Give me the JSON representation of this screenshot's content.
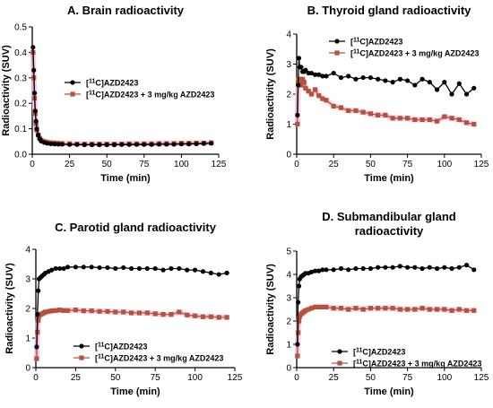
{
  "colors": {
    "control": "#000000",
    "blocked": "#b5523b",
    "blocked_band": "#f5c6e6"
  },
  "chart_data": [
    {
      "type": "line",
      "title_lines": [
        "A. Brain radioactivity"
      ],
      "xlabel": "Time (min)",
      "ylabel": "Radioactivity (SUV)",
      "xlim": [
        0,
        125
      ],
      "xticks": [
        0,
        25,
        50,
        75,
        100,
        125
      ],
      "ylim": [
        0,
        0.5
      ],
      "yticks": [
        0.0,
        0.1,
        0.2,
        0.3,
        0.4,
        0.5
      ],
      "ytick_labels": [
        "0.0",
        "0.1",
        "0.2",
        "0.3",
        "0.4",
        "0.5"
      ],
      "legend_position": "upper-middle",
      "series": [
        {
          "label_parts": [
            "[",
            "11",
            "C]AZD2423"
          ],
          "marker": "circle",
          "color": "#000000",
          "x": [
            0.5,
            1,
            1.5,
            2,
            2.5,
            3,
            4,
            5,
            6,
            8,
            10,
            12.5,
            15,
            17.5,
            20,
            25,
            30,
            35,
            40,
            45,
            50,
            55,
            60,
            65,
            70,
            75,
            80,
            85,
            90,
            95,
            100,
            105,
            110,
            115,
            120
          ],
          "y": [
            0.42,
            0.33,
            0.24,
            0.17,
            0.13,
            0.1,
            0.075,
            0.06,
            0.052,
            0.046,
            0.043,
            0.041,
            0.04,
            0.039,
            0.039,
            0.038,
            0.038,
            0.037,
            0.037,
            0.037,
            0.037,
            0.037,
            0.038,
            0.038,
            0.038,
            0.038,
            0.038,
            0.039,
            0.039,
            0.039,
            0.04,
            0.04,
            0.041,
            0.042,
            0.043
          ]
        },
        {
          "label_parts": [
            "[",
            "11",
            "C]AZD2423 + 3 mg/kg AZD2423"
          ],
          "marker": "square",
          "color": "#b5523b",
          "x": [
            0.5,
            1,
            1.5,
            2,
            2.5,
            3,
            4,
            5,
            6,
            8,
            10,
            12.5,
            15,
            17.5,
            20,
            25,
            30,
            35,
            40,
            45,
            50,
            55,
            60,
            65,
            70,
            75,
            80,
            85,
            90,
            95,
            100,
            105,
            110,
            115,
            120
          ],
          "y": [
            0.4,
            0.3,
            0.22,
            0.16,
            0.12,
            0.095,
            0.075,
            0.062,
            0.055,
            0.05,
            0.047,
            0.045,
            0.044,
            0.043,
            0.042,
            0.041,
            0.04,
            0.04,
            0.04,
            0.04,
            0.04,
            0.04,
            0.04,
            0.041,
            0.041,
            0.041,
            0.041,
            0.042,
            0.042,
            0.042,
            0.043,
            0.043,
            0.044,
            0.044,
            0.045
          ]
        }
      ]
    },
    {
      "type": "line",
      "title_lines": [
        "B. Thyroid gland radioactivity"
      ],
      "xlabel": "Time (min)",
      "ylabel": "Radioactivity (SUV)",
      "xlim": [
        0,
        125
      ],
      "xticks": [
        0,
        25,
        50,
        75,
        100,
        125
      ],
      "ylim": [
        0,
        4
      ],
      "yticks": [
        0,
        1,
        2,
        3,
        4
      ],
      "ytick_labels": [
        "0",
        "1",
        "2",
        "3",
        "4"
      ],
      "legend_position": "top-right",
      "series": [
        {
          "label_parts": [
            "[",
            "11",
            "C]AZD2423"
          ],
          "marker": "circle",
          "color": "#000000",
          "x": [
            0.5,
            1,
            1.5,
            2,
            3,
            4,
            5,
            6,
            8,
            10,
            12.5,
            15,
            17.5,
            20,
            25,
            30,
            35,
            40,
            45,
            50,
            55,
            60,
            65,
            70,
            75,
            80,
            85,
            90,
            95,
            100,
            105,
            110,
            115,
            120
          ],
          "y": [
            1.3,
            2.3,
            3.2,
            2.9,
            2.9,
            2.75,
            2.75,
            2.8,
            2.7,
            2.7,
            2.65,
            2.65,
            2.6,
            2.6,
            2.7,
            2.55,
            2.6,
            2.5,
            2.55,
            2.55,
            2.5,
            2.45,
            2.4,
            2.5,
            2.45,
            2.3,
            2.5,
            2.4,
            2.15,
            2.4,
            2.0,
            2.35,
            2.0,
            2.2
          ]
        },
        {
          "label_parts": [
            "[",
            "11",
            "C]AZD2423 + 3 mg/kg AZD2423"
          ],
          "marker": "square",
          "color": "#b5523b",
          "x": [
            0.5,
            1,
            1.5,
            2,
            3,
            4,
            5,
            6,
            8,
            10,
            12.5,
            15,
            17.5,
            20,
            25,
            30,
            35,
            40,
            45,
            50,
            55,
            60,
            65,
            70,
            75,
            80,
            85,
            90,
            95,
            100,
            105,
            110,
            115,
            120
          ],
          "y": [
            1.0,
            2.4,
            2.5,
            2.45,
            2.3,
            2.5,
            2.4,
            2.2,
            2.1,
            2.0,
            2.15,
            1.95,
            1.85,
            1.8,
            1.6,
            1.55,
            1.45,
            1.45,
            1.4,
            1.35,
            1.3,
            1.3,
            1.2,
            1.2,
            1.2,
            1.15,
            1.15,
            1.15,
            1.1,
            1.25,
            1.2,
            1.15,
            1.05,
            1.0
          ]
        }
      ]
    },
    {
      "type": "line",
      "title_lines": [
        "C. Parotid gland radioactivity"
      ],
      "xlabel": "Time (min)",
      "ylabel": "Radioactivity (SUV)",
      "xlim": [
        0,
        125
      ],
      "xticks": [
        0,
        25,
        50,
        75,
        100,
        125
      ],
      "ylim": [
        0,
        4
      ],
      "yticks": [
        0,
        1,
        2,
        3,
        4
      ],
      "ytick_labels": [
        "0",
        "1",
        "2",
        "3",
        "4"
      ],
      "legend_position": "bottom-middle",
      "series": [
        {
          "label_parts": [
            "[",
            "11",
            "C]AZD2423"
          ],
          "marker": "circle",
          "color": "#000000",
          "x": [
            0.5,
            1,
            1.5,
            2,
            3,
            4,
            5,
            6,
            8,
            10,
            12.5,
            15,
            17.5,
            20,
            25,
            30,
            35,
            40,
            45,
            50,
            55,
            60,
            65,
            70,
            75,
            80,
            85,
            90,
            95,
            100,
            105,
            110,
            115,
            120
          ],
          "y": [
            0.7,
            1.8,
            2.6,
            3.0,
            3.05,
            3.1,
            3.15,
            3.2,
            3.25,
            3.3,
            3.35,
            3.35,
            3.35,
            3.4,
            3.4,
            3.4,
            3.4,
            3.38,
            3.38,
            3.35,
            3.38,
            3.35,
            3.35,
            3.35,
            3.35,
            3.3,
            3.35,
            3.35,
            3.3,
            3.3,
            3.25,
            3.2,
            3.15,
            3.2
          ]
        },
        {
          "label_parts": [
            "[",
            "11",
            "C]AZD2423 + 3 mg/kg AZD2423"
          ],
          "marker": "square",
          "color": "#b5523b",
          "x": [
            0.5,
            1,
            1.5,
            2,
            3,
            4,
            5,
            6,
            8,
            10,
            12.5,
            15,
            17.5,
            20,
            25,
            30,
            35,
            40,
            45,
            50,
            55,
            60,
            65,
            70,
            75,
            80,
            85,
            90,
            95,
            100,
            105,
            110,
            115,
            120
          ],
          "y": [
            0.3,
            1.2,
            1.6,
            1.75,
            1.8,
            1.82,
            1.85,
            1.88,
            1.9,
            1.92,
            1.93,
            1.95,
            1.93,
            1.93,
            1.95,
            1.92,
            1.92,
            1.9,
            1.9,
            1.88,
            1.88,
            1.85,
            1.85,
            1.85,
            1.82,
            1.8,
            1.8,
            1.88,
            1.78,
            1.75,
            1.72,
            1.72,
            1.7,
            1.7
          ]
        }
      ]
    },
    {
      "type": "line",
      "title_lines": [
        "D. Submandibular gland",
        "radioactivity"
      ],
      "xlabel": "Time (min)",
      "ylabel": "Radioactivity (SUV)",
      "xlim": [
        0,
        125
      ],
      "xticks": [
        0,
        25,
        50,
        75,
        100,
        125
      ],
      "ylim": [
        0,
        5
      ],
      "yticks": [
        0,
        1,
        2,
        3,
        4,
        5
      ],
      "ytick_labels": [
        "0",
        "1",
        "2",
        "3",
        "4",
        "5"
      ],
      "legend_position": "bottom-middle",
      "series": [
        {
          "label_parts": [
            "[",
            "11",
            "C]AZD2423"
          ],
          "marker": "circle",
          "color": "#000000",
          "x": [
            0.5,
            1,
            1.5,
            2,
            3,
            4,
            5,
            6,
            8,
            10,
            12.5,
            15,
            17.5,
            20,
            25,
            30,
            35,
            40,
            45,
            50,
            55,
            60,
            65,
            70,
            75,
            80,
            85,
            90,
            95,
            100,
            105,
            110,
            115,
            120
          ],
          "y": [
            1.0,
            2.8,
            3.5,
            3.8,
            3.9,
            3.95,
            4.0,
            4.05,
            4.05,
            4.1,
            4.15,
            4.15,
            4.2,
            4.2,
            4.2,
            4.25,
            4.2,
            4.25,
            4.25,
            4.25,
            4.3,
            4.3,
            4.3,
            4.35,
            4.3,
            4.3,
            4.25,
            4.3,
            4.25,
            4.3,
            4.25,
            4.3,
            4.4,
            4.2
          ]
        },
        {
          "label_parts": [
            "[",
            "11",
            "C]AZD2423 + 3 mg/kg AZD2423"
          ],
          "marker": "square",
          "color": "#b5523b",
          "x": [
            0.5,
            1,
            1.5,
            2,
            3,
            4,
            5,
            6,
            8,
            10,
            12.5,
            15,
            17.5,
            20,
            25,
            30,
            35,
            40,
            45,
            50,
            55,
            60,
            65,
            70,
            75,
            80,
            85,
            90,
            95,
            100,
            105,
            110,
            115,
            120
          ],
          "y": [
            0.5,
            1.5,
            2.0,
            2.2,
            2.3,
            2.35,
            2.4,
            2.45,
            2.5,
            2.55,
            2.6,
            2.6,
            2.6,
            2.6,
            2.55,
            2.55,
            2.5,
            2.55,
            2.5,
            2.55,
            2.55,
            2.55,
            2.55,
            2.5,
            2.5,
            2.5,
            2.55,
            2.5,
            2.5,
            2.5,
            2.45,
            2.5,
            2.45,
            2.45
          ]
        }
      ]
    }
  ]
}
